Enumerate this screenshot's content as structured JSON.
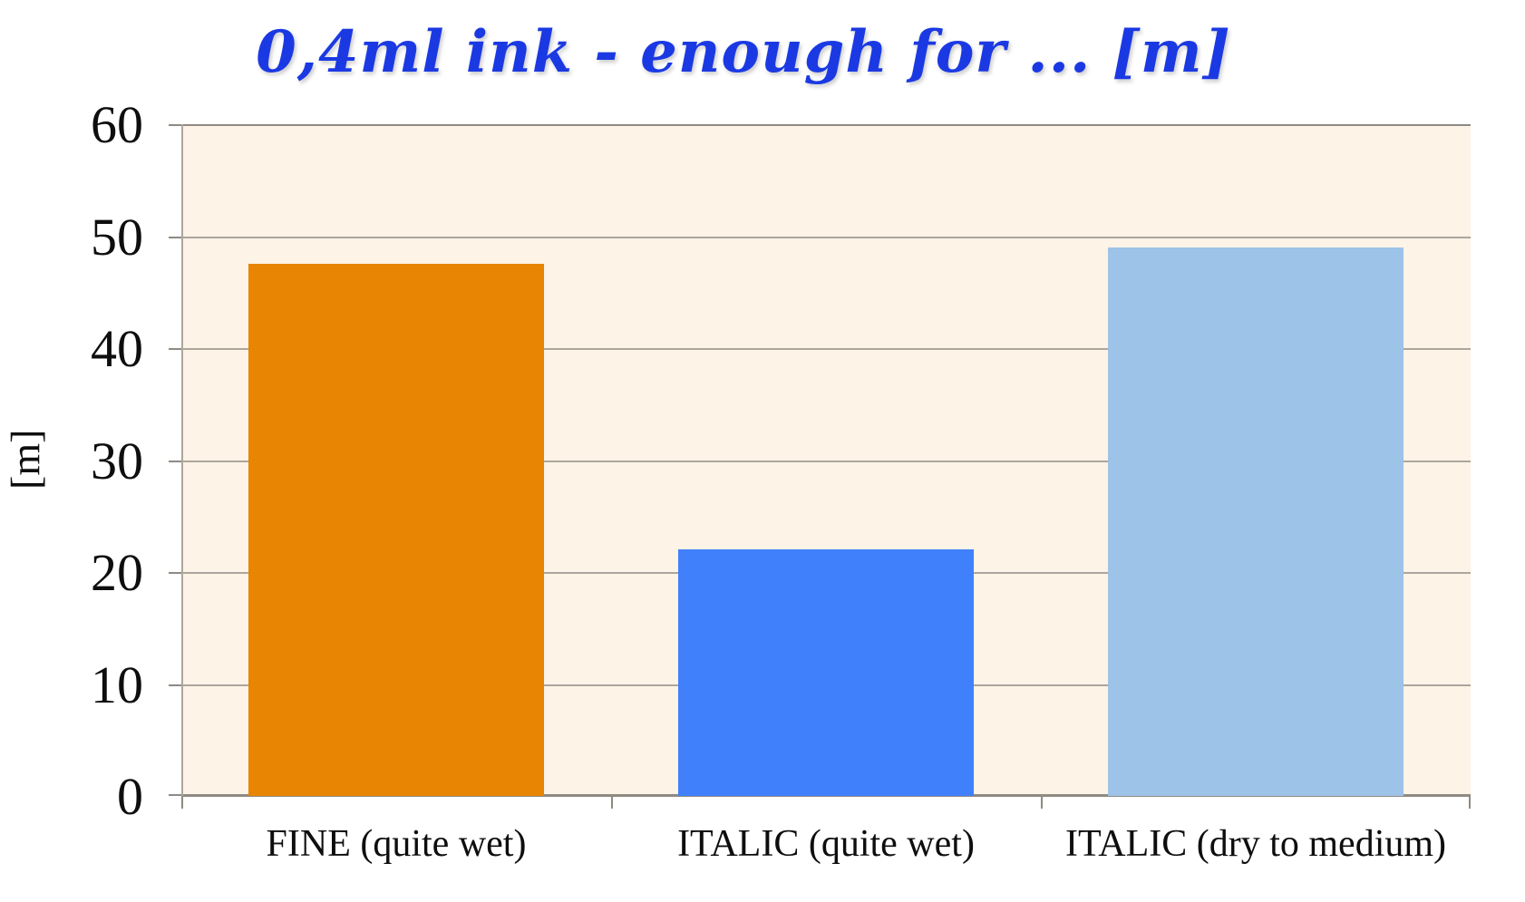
{
  "title": {
    "text": "0,4ml ink - enough for ... [m]",
    "color": "#1b39e3"
  },
  "chart_data": {
    "type": "bar",
    "title": "0,4ml ink - enough for ... [m]",
    "categories": [
      "FINE (quite wet)",
      "ITALIC (quite wet)",
      "ITALIC (dry to medium)"
    ],
    "values": [
      47.5,
      22,
      49
    ],
    "bar_colors": [
      "#e88502",
      "#4180fb",
      "#9dc3e8"
    ],
    "xlabel": "",
    "ylabel": "[m]",
    "ylim": [
      0,
      60
    ],
    "yticks": [
      0,
      10,
      20,
      30,
      40,
      50,
      60
    ],
    "grid": true,
    "legend": "none",
    "plot_background": "#fdf3e7",
    "gridline_color": "#aca69d",
    "axis_color": "#8f8a82",
    "tick_label_color": "#0e0e0e"
  }
}
